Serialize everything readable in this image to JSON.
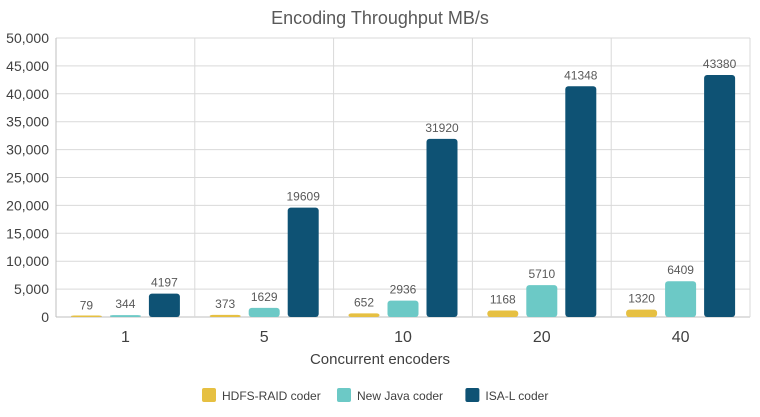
{
  "chart_data": {
    "type": "bar",
    "title": "Encoding Throughput MB/s",
    "xlabel": "Concurrent encoders",
    "ylabel": "",
    "categories": [
      "1",
      "5",
      "10",
      "20",
      "40"
    ],
    "ylim": [
      0,
      50000
    ],
    "yticks": [
      0,
      5000,
      10000,
      15000,
      20000,
      25000,
      30000,
      35000,
      40000,
      45000,
      50000
    ],
    "ytick_labels": [
      "0",
      "5,000",
      "10,000",
      "15,000",
      "20,000",
      "25,000",
      "30,000",
      "35,000",
      "40,000",
      "45,000",
      "50,000"
    ],
    "grid": true,
    "legend_position": "bottom",
    "series": [
      {
        "name": "HDFS-RAID coder",
        "color": "#e6c042",
        "values": [
          79,
          373,
          652,
          1168,
          1320
        ]
      },
      {
        "name": "New Java coder",
        "color": "#6cc9c6",
        "values": [
          344,
          1629,
          2936,
          5710,
          6409
        ]
      },
      {
        "name": "ISA-L coder",
        "color": "#0e5274",
        "values": [
          4197,
          19609,
          31920,
          41348,
          43380
        ]
      }
    ]
  }
}
